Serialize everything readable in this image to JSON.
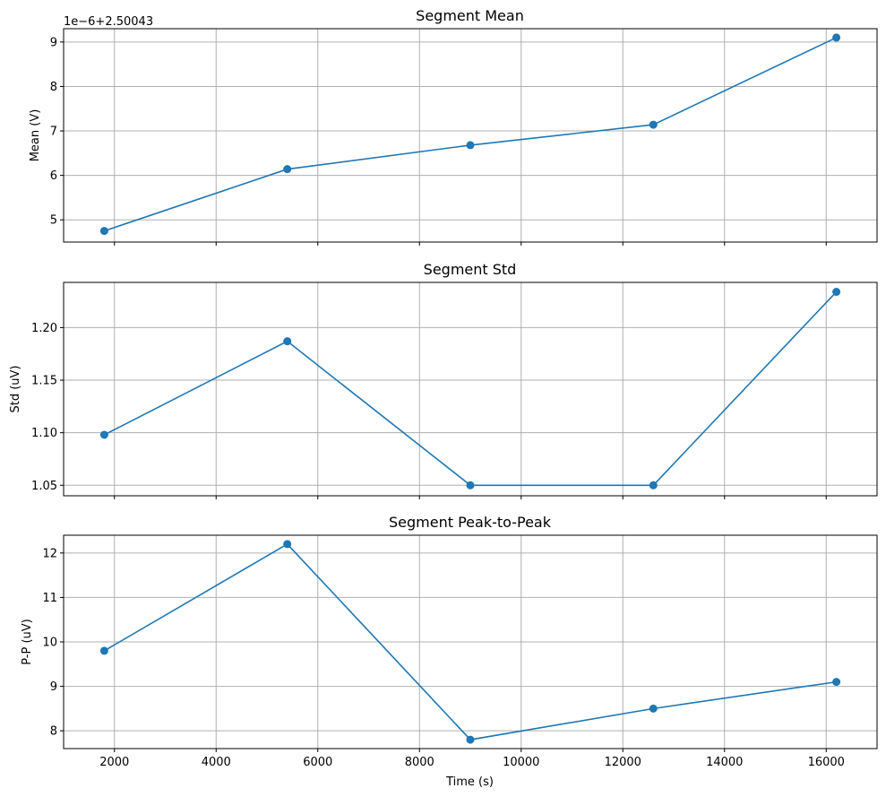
{
  "figure": {
    "xlabel": "Time (s)"
  },
  "colors": {
    "series": "#1f77b4",
    "grid": "#b0b0b0"
  },
  "chart_data": [
    {
      "type": "line",
      "title": "Segment Mean",
      "ylabel": "Mean (V)",
      "offset_text": "1e−6+2.50043",
      "x": [
        1800,
        5400,
        9000,
        12600,
        16200
      ],
      "y": [
        4.75,
        6.14,
        6.68,
        7.14,
        9.1
      ],
      "xlim": [
        1000,
        17000
      ],
      "ylim": [
        4.5,
        9.3
      ],
      "xticks": [
        2000,
        4000,
        6000,
        8000,
        10000,
        12000,
        14000,
        16000
      ],
      "yticks": [
        5,
        6,
        7,
        8,
        9
      ],
      "ytick_labels": [
        "5",
        "6",
        "7",
        "8",
        "9"
      ],
      "grid": true,
      "show_xtick_labels": false
    },
    {
      "type": "line",
      "title": "Segment Std",
      "ylabel": "Std (uV)",
      "x": [
        1800,
        5400,
        9000,
        12600,
        16200
      ],
      "y": [
        1.098,
        1.187,
        1.05,
        1.05,
        1.234
      ],
      "xlim": [
        1000,
        17000
      ],
      "ylim": [
        1.04,
        1.243
      ],
      "xticks": [
        2000,
        4000,
        6000,
        8000,
        10000,
        12000,
        14000,
        16000
      ],
      "yticks": [
        1.05,
        1.1,
        1.15,
        1.2
      ],
      "ytick_labels": [
        "1.05",
        "1.10",
        "1.15",
        "1.20"
      ],
      "grid": true,
      "show_xtick_labels": false
    },
    {
      "type": "line",
      "title": "Segment Peak-to-Peak",
      "ylabel": "P-P (uV)",
      "x": [
        1800,
        5400,
        9000,
        12600,
        16200
      ],
      "y": [
        9.8,
        12.2,
        7.8,
        8.5,
        9.1
      ],
      "xlim": [
        1000,
        17000
      ],
      "ylim": [
        7.6,
        12.4
      ],
      "xticks": [
        2000,
        4000,
        6000,
        8000,
        10000,
        12000,
        14000,
        16000
      ],
      "xtick_labels": [
        "2000",
        "4000",
        "6000",
        "8000",
        "10000",
        "12000",
        "14000",
        "16000"
      ],
      "yticks": [
        8,
        9,
        10,
        11,
        12
      ],
      "ytick_labels": [
        "8",
        "9",
        "10",
        "11",
        "12"
      ],
      "grid": true,
      "show_xtick_labels": true
    }
  ]
}
